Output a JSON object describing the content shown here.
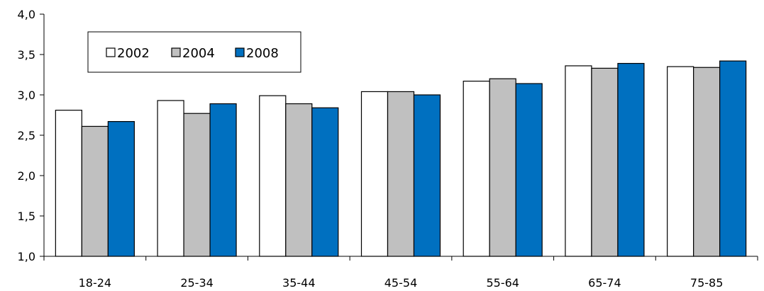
{
  "chart_data": {
    "type": "bar",
    "title": "",
    "xlabel": "",
    "ylabel": "",
    "categories": [
      "18-24",
      "25-34",
      "35-44",
      "45-54",
      "55-64",
      "65-74",
      "75-85"
    ],
    "series": [
      {
        "name": "2002",
        "color": "#ffffff",
        "values": [
          2.81,
          2.93,
          2.99,
          3.04,
          3.17,
          3.36,
          3.35
        ]
      },
      {
        "name": "2004",
        "color": "#c0c0c0",
        "values": [
          2.61,
          2.77,
          2.89,
          3.04,
          3.2,
          3.33,
          3.34
        ]
      },
      {
        "name": "2008",
        "color": "#0070c0",
        "values": [
          2.67,
          2.89,
          2.84,
          3.0,
          3.14,
          3.39,
          3.42
        ]
      }
    ],
    "ylim": [
      1.0,
      4.0
    ],
    "yticks": [
      1.0,
      1.5,
      2.0,
      2.5,
      3.0,
      3.5,
      4.0
    ],
    "ytick_labels": [
      "1,0",
      "1,5",
      "2,0",
      "2,5",
      "3,0",
      "3,5",
      "4,0"
    ],
    "grid": false,
    "legend_position": "top-left"
  }
}
